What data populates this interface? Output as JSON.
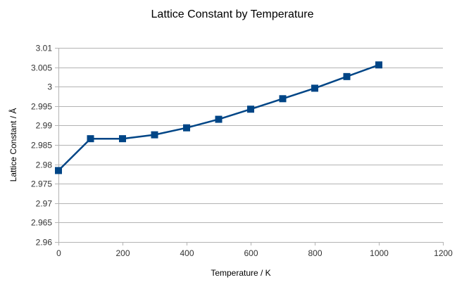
{
  "chart_data": {
    "type": "line",
    "title": "Lattice Constant by Temperature",
    "xlabel": "Temperature / K",
    "ylabel": "Lattice Constant / Å",
    "xlim": [
      0,
      1200
    ],
    "ylim": [
      2.96,
      3.01
    ],
    "xticks": [
      0,
      200,
      400,
      600,
      800,
      1000,
      1200
    ],
    "yticks": [
      2.96,
      2.965,
      2.97,
      2.975,
      2.98,
      2.985,
      2.99,
      2.995,
      3,
      3.005,
      3.01
    ],
    "ytick_labels": [
      "2.96",
      "2.965",
      "2.97",
      "2.975",
      "2.98",
      "2.985",
      "2.99",
      "2.995",
      "3",
      "3.005",
      "3.01"
    ],
    "grid": true,
    "legend": "none",
    "series": [
      {
        "name": "Lattice Constant",
        "color": "#004586",
        "marker": "square",
        "x": [
          0,
          100,
          200,
          300,
          400,
          500,
          600,
          700,
          800,
          900,
          1000
        ],
        "y": [
          2.9784,
          2.9866,
          2.9866,
          2.9876,
          2.9894,
          2.9916,
          2.9942,
          2.9969,
          2.9996,
          3.0026,
          3.0056
        ]
      }
    ]
  }
}
